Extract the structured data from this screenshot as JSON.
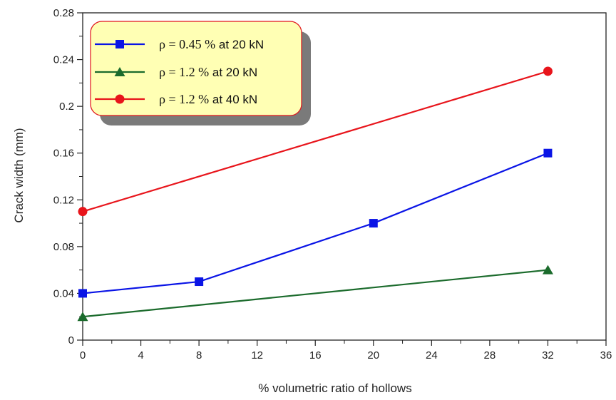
{
  "chart_data": {
    "type": "line",
    "title": "",
    "xlabel": "% volumetric ratio of hollows",
    "ylabel": "Crack width (mm)",
    "xlim": [
      0,
      36
    ],
    "ylim": [
      0,
      0.28
    ],
    "xticks": [
      0,
      4,
      8,
      12,
      16,
      20,
      24,
      28,
      32,
      36
    ],
    "xtick_labels": [
      "0",
      "4",
      "8",
      "12",
      "16",
      "20",
      "24",
      "28",
      "32",
      "36"
    ],
    "yticks": [
      0,
      0.04,
      0.08,
      0.12,
      0.16,
      0.2,
      0.24,
      0.28
    ],
    "ytick_labels": [
      "0",
      "0.04",
      "0.08",
      "0.12",
      "0.16",
      "0.2",
      "0.24",
      "0.28"
    ],
    "grid": false,
    "legend_position": "top-left",
    "series": [
      {
        "legend_rho": "ρ = 0.45 %",
        "legend_rest": " at 20 kN",
        "color": "#0a14e6",
        "marker": "square",
        "x": [
          0,
          8,
          20,
          32
        ],
        "y": [
          0.04,
          0.05,
          0.1,
          0.16
        ]
      },
      {
        "legend_rho": "ρ = 1.2 %",
        "legend_rest": "  at 20 kN",
        "color": "#1b6b2c",
        "marker": "triangle",
        "x": [
          0,
          32
        ],
        "y": [
          0.02,
          0.06
        ]
      },
      {
        "legend_rho": "ρ = 1.2 %",
        "legend_rest": "  at 40 kN",
        "color": "#e8141b",
        "marker": "circle",
        "x": [
          0,
          32
        ],
        "y": [
          0.11,
          0.23
        ]
      }
    ]
  }
}
